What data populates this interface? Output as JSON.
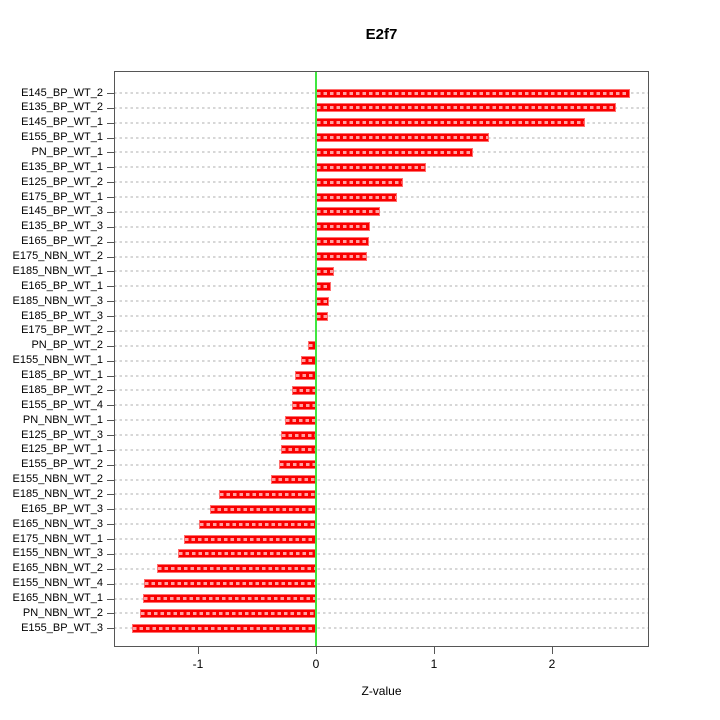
{
  "chart_data": {
    "type": "bar",
    "orientation": "horizontal",
    "title": "E2f7",
    "xlabel": "Z-value",
    "ylabel": "",
    "categories": [
      "E145_BP_WT_2",
      "E135_BP_WT_2",
      "E145_BP_WT_1",
      "E155_BP_WT_1",
      "PN_BP_WT_1",
      "E135_BP_WT_1",
      "E125_BP_WT_2",
      "E175_BP_WT_1",
      "E145_BP_WT_3",
      "E135_BP_WT_3",
      "E165_BP_WT_2",
      "E175_NBN_WT_2",
      "E185_NBN_WT_1",
      "E165_BP_WT_1",
      "E185_NBN_WT_3",
      "E185_BP_WT_3",
      "E175_BP_WT_2",
      "PN_BP_WT_2",
      "E155_NBN_WT_1",
      "E185_BP_WT_1",
      "E185_BP_WT_2",
      "E155_BP_WT_4",
      "PN_NBN_WT_1",
      "E125_BP_WT_3",
      "E125_BP_WT_1",
      "E155_BP_WT_2",
      "E155_NBN_WT_2",
      "E185_NBN_WT_2",
      "E165_BP_WT_3",
      "E165_NBN_WT_3",
      "E175_NBN_WT_1",
      "E155_NBN_WT_3",
      "E165_NBN_WT_2",
      "E155_NBN_WT_4",
      "E165_NBN_WT_1",
      "PN_NBN_WT_2",
      "E155_BP_WT_3"
    ],
    "values": [
      2.66,
      2.54,
      2.28,
      1.47,
      1.33,
      0.93,
      0.74,
      0.69,
      0.54,
      0.46,
      0.45,
      0.43,
      0.15,
      0.13,
      0.11,
      0.1,
      0.0,
      -0.07,
      -0.13,
      -0.18,
      -0.2,
      -0.2,
      -0.26,
      -0.3,
      -0.3,
      -0.31,
      -0.38,
      -0.82,
      -0.9,
      -0.99,
      -1.12,
      -1.17,
      -1.35,
      -1.46,
      -1.47,
      -1.49,
      -1.56
    ],
    "xticks": [
      "-1",
      "0",
      "1",
      "2"
    ],
    "xtick_values": [
      -1,
      0,
      1,
      2
    ],
    "xlim": [
      -1.72,
      2.84
    ],
    "grid": true,
    "grid_style": "dashed",
    "legend": false,
    "zero_line": true,
    "colors": {
      "bar": "#f90000",
      "bar_dash": "#ffa0a0",
      "zero_line": "#3fe63f",
      "grid": "#d7d7d7",
      "axis": "#565656",
      "text": "#000000",
      "background": "#ffffff"
    }
  }
}
